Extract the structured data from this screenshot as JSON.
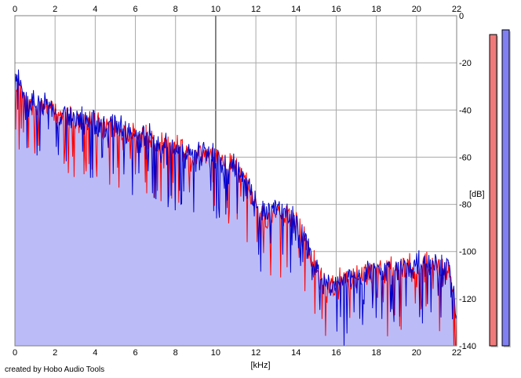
{
  "chart_data": {
    "type": "area",
    "xlabel": "[kHz]",
    "ylabel": "[dB]",
    "xlim": [
      0,
      22
    ],
    "ylim": [
      -140,
      0
    ],
    "x_ticks": [
      "0",
      "2",
      "4",
      "6",
      "8",
      "10",
      "12",
      "14",
      "16",
      "18",
      "20",
      "22"
    ],
    "y_ticks": [
      "0",
      "-20",
      "-40",
      "-60",
      "-80",
      "-100",
      "-120",
      "-140"
    ],
    "grid": true,
    "series": [
      {
        "color": "#ff0000",
        "envelope": [
          [
            0.05,
            -24
          ],
          [
            0.3,
            -28
          ],
          [
            0.7,
            -35
          ],
          [
            1.0,
            -33
          ],
          [
            1.5,
            -34
          ],
          [
            2.0,
            -38
          ],
          [
            3.0,
            -40
          ],
          [
            4.0,
            -42
          ],
          [
            5.0,
            -43
          ],
          [
            6.0,
            -46
          ],
          [
            7.0,
            -49
          ],
          [
            8.0,
            -52
          ],
          [
            9.0,
            -54
          ],
          [
            10.0,
            -55
          ],
          [
            10.6,
            -57
          ],
          [
            11.0,
            -60
          ],
          [
            11.5,
            -66
          ],
          [
            12.0,
            -76
          ],
          [
            12.5,
            -82
          ],
          [
            13.0,
            -78
          ],
          [
            13.5,
            -80
          ],
          [
            14.0,
            -84
          ],
          [
            14.5,
            -92
          ],
          [
            15.0,
            -103
          ],
          [
            15.5,
            -112
          ],
          [
            16.0,
            -108
          ],
          [
            17.0,
            -106
          ],
          [
            18.0,
            -104
          ],
          [
            19.0,
            -103
          ],
          [
            20.0,
            -102
          ],
          [
            21.0,
            -101
          ],
          [
            21.6,
            -104
          ],
          [
            22.0,
            -122
          ]
        ]
      },
      {
        "color": "#0000cc",
        "envelope": [
          [
            0.05,
            -22
          ],
          [
            0.3,
            -25
          ],
          [
            0.7,
            -33
          ],
          [
            1.0,
            -32
          ],
          [
            1.5,
            -33
          ],
          [
            2.0,
            -37
          ],
          [
            3.0,
            -39
          ],
          [
            4.0,
            -41
          ],
          [
            5.0,
            -43
          ],
          [
            6.0,
            -45
          ],
          [
            7.0,
            -48
          ],
          [
            8.0,
            -51
          ],
          [
            9.0,
            -53
          ],
          [
            10.0,
            -55
          ],
          [
            10.6,
            -57
          ],
          [
            11.0,
            -60
          ],
          [
            11.5,
            -66
          ],
          [
            12.0,
            -76
          ],
          [
            12.5,
            -80
          ],
          [
            13.0,
            -76
          ],
          [
            13.5,
            -79
          ],
          [
            14.0,
            -83
          ],
          [
            14.5,
            -92
          ],
          [
            15.0,
            -103
          ],
          [
            15.5,
            -112
          ],
          [
            16.0,
            -108
          ],
          [
            17.0,
            -106
          ],
          [
            18.0,
            -104
          ],
          [
            19.0,
            -103
          ],
          [
            20.0,
            -101
          ],
          [
            21.0,
            -100
          ],
          [
            21.6,
            -104
          ],
          [
            22.0,
            -122
          ]
        ]
      }
    ],
    "fill_color": "#bbbbf7",
    "level_meters": [
      {
        "name": "left-channel-peak",
        "color": "#f07a7a",
        "value_db": -8
      },
      {
        "name": "right-channel-peak",
        "color": "#8080f2",
        "value_db": -6
      }
    ]
  },
  "footer": {
    "credit": "created by Hobo Audio Tools"
  }
}
